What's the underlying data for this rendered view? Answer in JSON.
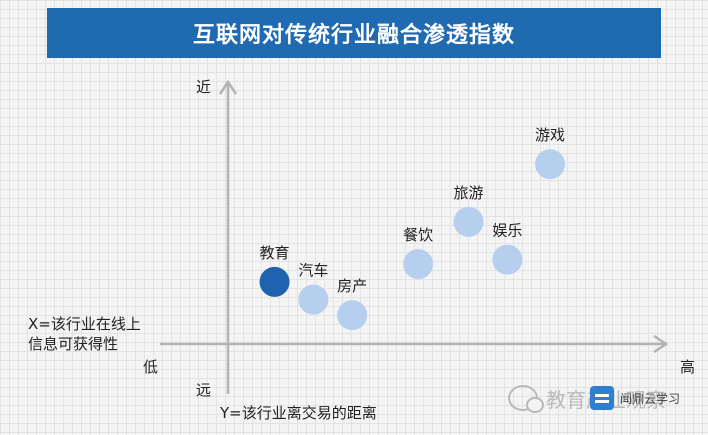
{
  "chart_data": {
    "type": "scatter",
    "title": "互联网对传统行业融合渗透指数",
    "xlabel_lines": [
      "X=该行业在线上",
      "信息可获得性"
    ],
    "ylabel": "Y=该行业离交易的距离",
    "x_low_label": "低",
    "x_high_label": "高",
    "y_near_label": "近",
    "y_far_label": "远",
    "xlim": [
      0,
      10
    ],
    "ylim": [
      0,
      10
    ],
    "grid": false,
    "points": [
      {
        "label": "教育",
        "x": 1.2,
        "y": 2.8,
        "color": "#1f63b0"
      },
      {
        "label": "汽车",
        "x": 2.2,
        "y": 2.0,
        "color": "#b7cfee"
      },
      {
        "label": "房产",
        "x": 3.2,
        "y": 1.3,
        "color": "#b7cfee"
      },
      {
        "label": "餐饮",
        "x": 4.9,
        "y": 3.6,
        "color": "#b7cfee"
      },
      {
        "label": "旅游",
        "x": 6.2,
        "y": 5.5,
        "color": "#b7cfee"
      },
      {
        "label": "娱乐",
        "x": 7.2,
        "y": 3.8,
        "color": "#b7cfee"
      },
      {
        "label": "游戏",
        "x": 8.3,
        "y": 8.1,
        "color": "#b7cfee"
      }
    ]
  },
  "watermark": {
    "text": "教育产业观察",
    "brand": "闻鼎云学习"
  }
}
